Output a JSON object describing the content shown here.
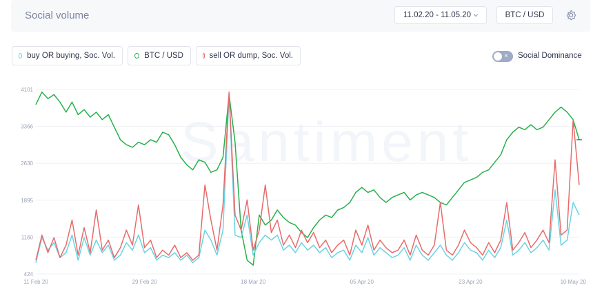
{
  "header": {
    "title": "Social volume",
    "date_range": "11.02.20 - 11.05.20",
    "pair": "BTC / USD",
    "settings_icon": "gear-icon",
    "chevron_icon": "chevron-down-icon"
  },
  "legend": {
    "items": [
      {
        "label": "buy OR buying, Soc. Vol.",
        "color": "#68d4e3"
      },
      {
        "label": "BTC / USD",
        "color": "#26b14a"
      },
      {
        "label": "sell OR dump, Soc. Vol.",
        "color": "#e86a6a"
      }
    ]
  },
  "toggle": {
    "label": "Social Dominance",
    "state": "off"
  },
  "watermark": "Santiment",
  "chart_data": {
    "type": "line",
    "yticks": [
      "4101",
      "3366",
      "2630",
      "1895",
      "1160",
      "424"
    ],
    "ylim": [
      424,
      4101
    ],
    "xticks": [
      {
        "day": 0,
        "label": "11 Feb 20"
      },
      {
        "day": 18,
        "label": "29 Feb 20"
      },
      {
        "day": 36,
        "label": "18 Mar 20"
      },
      {
        "day": 54,
        "label": "05 Apr 20"
      },
      {
        "day": 72,
        "label": "23 Apr 20"
      },
      {
        "day": 89,
        "label": "10 May 20"
      }
    ],
    "xlim": [
      0,
      90
    ],
    "grid": true,
    "series": [
      {
        "name": "buy OR buying, Soc. Vol.",
        "color": "#68d4e3",
        "values": [
          [
            0,
            650
          ],
          [
            1,
            1150
          ],
          [
            2,
            900
          ],
          [
            3,
            1050
          ],
          [
            4,
            750
          ],
          [
            5,
            850
          ],
          [
            6,
            1200
          ],
          [
            7,
            700
          ],
          [
            8,
            1150
          ],
          [
            9,
            800
          ],
          [
            10,
            1100
          ],
          [
            11,
            850
          ],
          [
            12,
            1000
          ],
          [
            13,
            700
          ],
          [
            14,
            800
          ],
          [
            15,
            1050
          ],
          [
            16,
            900
          ],
          [
            17,
            1200
          ],
          [
            18,
            850
          ],
          [
            19,
            950
          ],
          [
            20,
            700
          ],
          [
            21,
            800
          ],
          [
            22,
            750
          ],
          [
            23,
            850
          ],
          [
            24,
            700
          ],
          [
            25,
            800
          ],
          [
            26,
            650
          ],
          [
            27,
            750
          ],
          [
            28,
            1300
          ],
          [
            29,
            1100
          ],
          [
            30,
            800
          ],
          [
            31,
            1300
          ],
          [
            32,
            4000
          ],
          [
            33,
            1200
          ],
          [
            34,
            1150
          ],
          [
            35,
            1600
          ],
          [
            36,
            800
          ],
          [
            37,
            1050
          ],
          [
            38,
            1200
          ],
          [
            39,
            1100
          ],
          [
            40,
            1200
          ],
          [
            41,
            900
          ],
          [
            42,
            1000
          ],
          [
            43,
            850
          ],
          [
            44,
            1050
          ],
          [
            45,
            900
          ],
          [
            46,
            1000
          ],
          [
            47,
            850
          ],
          [
            48,
            950
          ],
          [
            49,
            750
          ],
          [
            50,
            850
          ],
          [
            51,
            900
          ],
          [
            52,
            700
          ],
          [
            53,
            1000
          ],
          [
            54,
            850
          ],
          [
            55,
            1150
          ],
          [
            56,
            800
          ],
          [
            57,
            950
          ],
          [
            58,
            850
          ],
          [
            59,
            750
          ],
          [
            60,
            800
          ],
          [
            61,
            950
          ],
          [
            62,
            700
          ],
          [
            63,
            1000
          ],
          [
            64,
            800
          ],
          [
            65,
            700
          ],
          [
            66,
            850
          ],
          [
            67,
            1000
          ],
          [
            68,
            800
          ],
          [
            69,
            700
          ],
          [
            70,
            850
          ],
          [
            71,
            1050
          ],
          [
            72,
            900
          ],
          [
            73,
            850
          ],
          [
            74,
            700
          ],
          [
            75,
            900
          ],
          [
            76,
            750
          ],
          [
            77,
            950
          ],
          [
            78,
            1500
          ],
          [
            79,
            800
          ],
          [
            80,
            900
          ],
          [
            81,
            1050
          ],
          [
            82,
            850
          ],
          [
            83,
            950
          ],
          [
            84,
            1100
          ],
          [
            85,
            900
          ],
          [
            86,
            2100
          ],
          [
            87,
            1000
          ],
          [
            88,
            1100
          ],
          [
            89,
            1850
          ],
          [
            90,
            1600
          ]
        ]
      },
      {
        "name": "BTC / USD",
        "color": "#26b14a",
        "values": [
          [
            0,
            3800
          ],
          [
            1,
            4050
          ],
          [
            2,
            3920
          ],
          [
            3,
            4000
          ],
          [
            4,
            3850
          ],
          [
            5,
            3650
          ],
          [
            6,
            3850
          ],
          [
            7,
            3600
          ],
          [
            8,
            3700
          ],
          [
            9,
            3550
          ],
          [
            10,
            3650
          ],
          [
            11,
            3500
          ],
          [
            12,
            3600
          ],
          [
            13,
            3350
          ],
          [
            14,
            3100
          ],
          [
            15,
            3000
          ],
          [
            16,
            2950
          ],
          [
            17,
            3050
          ],
          [
            18,
            3000
          ],
          [
            19,
            3100
          ],
          [
            20,
            3050
          ],
          [
            21,
            3250
          ],
          [
            22,
            3200
          ],
          [
            23,
            3000
          ],
          [
            24,
            2750
          ],
          [
            25,
            2600
          ],
          [
            26,
            2500
          ],
          [
            27,
            2700
          ],
          [
            28,
            2650
          ],
          [
            29,
            2450
          ],
          [
            30,
            2500
          ],
          [
            31,
            2750
          ],
          [
            32,
            4000
          ],
          [
            33,
            3050
          ],
          [
            34,
            1300
          ],
          [
            35,
            700
          ],
          [
            36,
            600
          ],
          [
            37,
            1600
          ],
          [
            38,
            1400
          ],
          [
            39,
            1500
          ],
          [
            40,
            1700
          ],
          [
            41,
            1550
          ],
          [
            42,
            1450
          ],
          [
            43,
            1400
          ],
          [
            44,
            1250
          ],
          [
            45,
            1150
          ],
          [
            46,
            1350
          ],
          [
            47,
            1500
          ],
          [
            48,
            1600
          ],
          [
            49,
            1550
          ],
          [
            50,
            1700
          ],
          [
            51,
            1750
          ],
          [
            52,
            1850
          ],
          [
            53,
            2050
          ],
          [
            54,
            2150
          ],
          [
            55,
            2050
          ],
          [
            56,
            2100
          ],
          [
            57,
            1950
          ],
          [
            58,
            1850
          ],
          [
            59,
            1950
          ],
          [
            60,
            2000
          ],
          [
            61,
            2050
          ],
          [
            62,
            1900
          ],
          [
            63,
            2000
          ],
          [
            64,
            2050
          ],
          [
            65,
            2000
          ],
          [
            66,
            1950
          ],
          [
            67,
            1850
          ],
          [
            68,
            1800
          ],
          [
            69,
            1950
          ],
          [
            70,
            2100
          ],
          [
            71,
            2250
          ],
          [
            72,
            2300
          ],
          [
            73,
            2350
          ],
          [
            74,
            2450
          ],
          [
            75,
            2500
          ],
          [
            76,
            2650
          ],
          [
            77,
            2800
          ],
          [
            78,
            3100
          ],
          [
            79,
            3250
          ],
          [
            80,
            3350
          ],
          [
            81,
            3300
          ],
          [
            82,
            3400
          ],
          [
            83,
            3300
          ],
          [
            84,
            3350
          ],
          [
            85,
            3500
          ],
          [
            86,
            3650
          ],
          [
            87,
            3750
          ],
          [
            88,
            3650
          ],
          [
            89,
            3500
          ],
          [
            90,
            3100
          ]
        ]
      },
      {
        "name": "sell OR dump, Soc. Vol.",
        "color": "#e86a6a",
        "values": [
          [
            0,
            700
          ],
          [
            1,
            1200
          ],
          [
            2,
            850
          ],
          [
            3,
            1150
          ],
          [
            4,
            750
          ],
          [
            5,
            1000
          ],
          [
            6,
            1500
          ],
          [
            7,
            800
          ],
          [
            8,
            1350
          ],
          [
            9,
            850
          ],
          [
            10,
            1700
          ],
          [
            11,
            900
          ],
          [
            12,
            1100
          ],
          [
            13,
            750
          ],
          [
            14,
            950
          ],
          [
            15,
            1300
          ],
          [
            16,
            1000
          ],
          [
            17,
            1800
          ],
          [
            18,
            950
          ],
          [
            19,
            1100
          ],
          [
            20,
            750
          ],
          [
            21,
            900
          ],
          [
            22,
            800
          ],
          [
            23,
            1000
          ],
          [
            24,
            750
          ],
          [
            25,
            850
          ],
          [
            26,
            700
          ],
          [
            27,
            800
          ],
          [
            28,
            2200
          ],
          [
            29,
            1500
          ],
          [
            30,
            900
          ],
          [
            31,
            1800
          ],
          [
            32,
            4050
          ],
          [
            33,
            1600
          ],
          [
            34,
            1300
          ],
          [
            35,
            1900
          ],
          [
            36,
            900
          ],
          [
            37,
            1300
          ],
          [
            38,
            2200
          ],
          [
            39,
            1250
          ],
          [
            40,
            1500
          ],
          [
            41,
            1000
          ],
          [
            42,
            1200
          ],
          [
            43,
            950
          ],
          [
            44,
            1300
          ],
          [
            45,
            1050
          ],
          [
            46,
            1250
          ],
          [
            47,
            950
          ],
          [
            48,
            1100
          ],
          [
            49,
            850
          ],
          [
            50,
            1000
          ],
          [
            51,
            1100
          ],
          [
            52,
            800
          ],
          [
            53,
            1300
          ],
          [
            54,
            1000
          ],
          [
            55,
            1400
          ],
          [
            56,
            900
          ],
          [
            57,
            1100
          ],
          [
            58,
            950
          ],
          [
            59,
            850
          ],
          [
            60,
            900
          ],
          [
            61,
            1100
          ],
          [
            62,
            800
          ],
          [
            63,
            1200
          ],
          [
            64,
            900
          ],
          [
            65,
            800
          ],
          [
            66,
            1000
          ],
          [
            67,
            1850
          ],
          [
            68,
            900
          ],
          [
            69,
            800
          ],
          [
            70,
            1000
          ],
          [
            71,
            1300
          ],
          [
            72,
            1050
          ],
          [
            73,
            950
          ],
          [
            74,
            800
          ],
          [
            75,
            1050
          ],
          [
            76,
            850
          ],
          [
            77,
            1100
          ],
          [
            78,
            1850
          ],
          [
            79,
            900
          ],
          [
            80,
            1050
          ],
          [
            81,
            1250
          ],
          [
            82,
            950
          ],
          [
            83,
            1100
          ],
          [
            84,
            1300
          ],
          [
            85,
            1050
          ],
          [
            86,
            2700
          ],
          [
            87,
            1200
          ],
          [
            88,
            1300
          ],
          [
            89,
            3500
          ],
          [
            90,
            2200
          ]
        ]
      }
    ]
  }
}
